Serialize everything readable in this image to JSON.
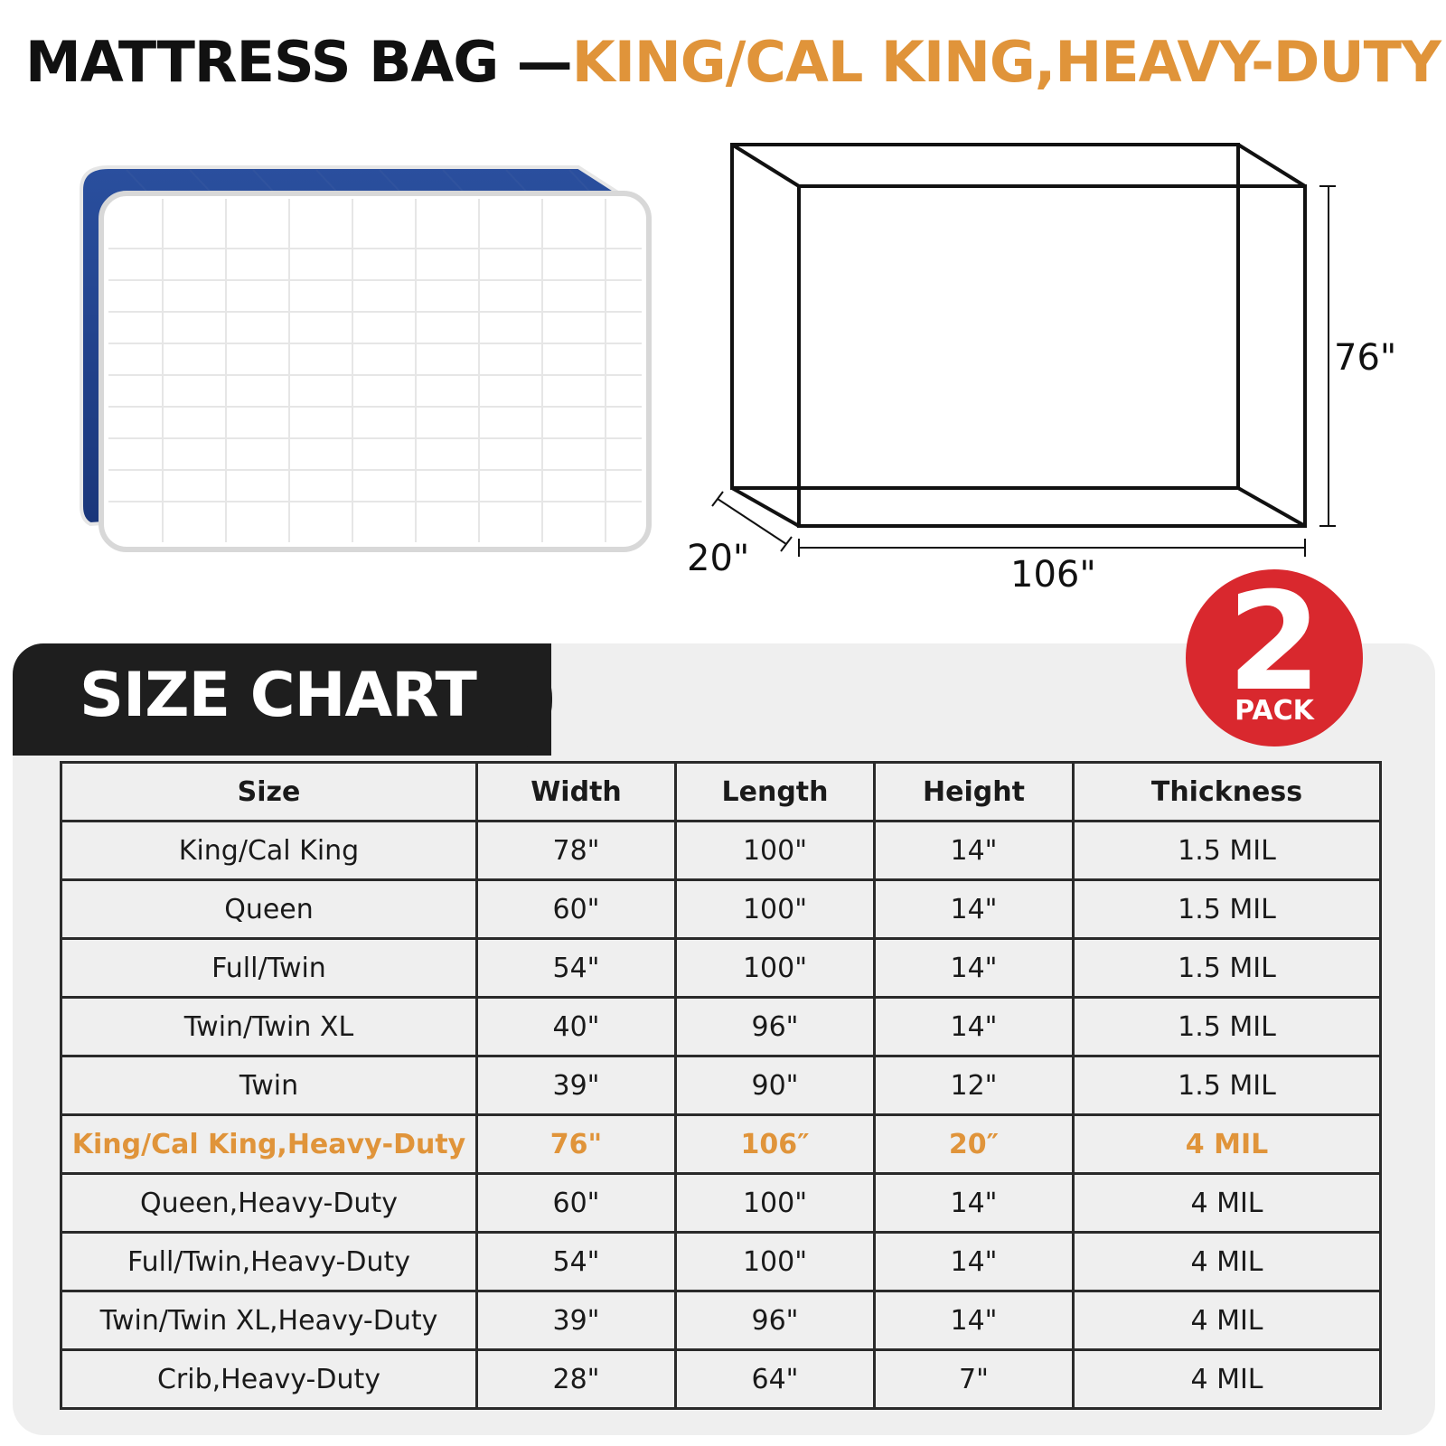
{
  "title": {
    "part1": "MATTRESS BAG —",
    "part2": "KING/CAL KING,HEAVY-DUTY"
  },
  "diagram": {
    "height_label": "76\"",
    "depth_label": "20\"",
    "length_label": "106\""
  },
  "size_chart_label": "SIZE CHART",
  "badge": {
    "number": "2",
    "word": "PACK"
  },
  "colors": {
    "accent": "#e0943a",
    "badge": "#d9282e",
    "mattress_blue": "#1f3f8c",
    "dark": "#1e1e1e"
  },
  "table": {
    "headers": [
      "Size",
      "Width",
      "Length",
      "Height",
      "Thickness"
    ],
    "rows": [
      [
        "King/Cal King",
        "78\"",
        "100\"",
        "14\"",
        "1.5 MIL"
      ],
      [
        "Queen",
        "60\"",
        "100\"",
        "14\"",
        "1.5 MIL"
      ],
      [
        "Full/Twin",
        "54\"",
        "100\"",
        "14\"",
        "1.5 MIL"
      ],
      [
        "Twin/Twin XL",
        "40\"",
        "96\"",
        "14\"",
        "1.5 MIL"
      ],
      [
        "Twin",
        "39\"",
        "90\"",
        "12\"",
        "1.5 MIL"
      ],
      [
        "King/Cal King,Heavy-Duty",
        "76\"",
        "106″",
        "20″",
        "4 MIL"
      ],
      [
        "Queen,Heavy-Duty",
        "60\"",
        "100\"",
        "14\"",
        "4 MIL"
      ],
      [
        "Full/Twin,Heavy-Duty",
        "54\"",
        "100\"",
        "14\"",
        "4 MIL"
      ],
      [
        "Twin/Twin XL,Heavy-Duty",
        "39\"",
        "96\"",
        "14\"",
        "4 MIL"
      ],
      [
        "Crib,Heavy-Duty",
        "28\"",
        "64\"",
        "7\"",
        "4 MIL"
      ]
    ],
    "highlight_row": 5
  }
}
